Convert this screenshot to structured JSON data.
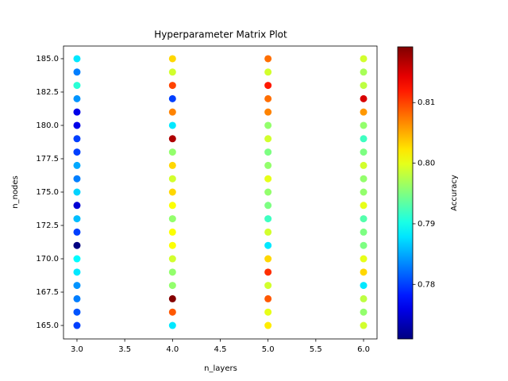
{
  "chart_data": {
    "type": "scatter",
    "title": "Hyperparameter Matrix Plot",
    "x_label": "n_layers",
    "y_label": "n_nodes",
    "xlim": [
      2.859,
      6.141
    ],
    "xticks": [
      {
        "value": 3,
        "label": "3.0"
      },
      {
        "value": 3.5,
        "label": "3.5"
      },
      {
        "value": 4,
        "label": "4.0"
      },
      {
        "value": 4.5,
        "label": "4.5"
      },
      {
        "value": 5,
        "label": "5.0"
      },
      {
        "value": 5.5,
        "label": "5.5"
      },
      {
        "value": 6,
        "label": "6.0"
      }
    ],
    "ylim": [
      163.99,
      185.95
    ],
    "yticks": [
      {
        "value": 165,
        "label": "165.0"
      },
      {
        "value": 167.5,
        "label": "167.5"
      },
      {
        "value": 170,
        "label": "170.0"
      },
      {
        "value": 172.5,
        "label": "172.5"
      },
      {
        "value": 175,
        "label": "175.0"
      },
      {
        "value": 177.5,
        "label": "177.5"
      },
      {
        "value": 180,
        "label": "180.0"
      },
      {
        "value": 182.5,
        "label": "182.5"
      },
      {
        "value": 185,
        "label": "185.0"
      }
    ],
    "colorbar": {
      "label": "Accuracy",
      "cmap": "jet",
      "lim": [
        0.771,
        0.8192
      ],
      "ticks": [
        {
          "value": 0.78,
          "label": "0.78"
        },
        {
          "value": 0.79,
          "label": "0.79"
        },
        {
          "value": 0.8,
          "label": "0.80"
        },
        {
          "value": 0.81,
          "label": "0.81"
        }
      ]
    },
    "x": [
      3,
      3,
      3,
      3,
      3,
      3,
      3,
      3,
      3,
      3,
      3,
      3,
      3,
      3,
      3,
      3,
      3,
      3,
      3,
      3,
      3,
      4,
      4,
      4,
      4,
      4,
      4,
      4,
      4,
      4,
      4,
      4,
      4,
      4,
      4,
      4,
      4,
      4,
      4,
      4,
      4,
      4,
      5,
      5,
      5,
      5,
      5,
      5,
      5,
      5,
      5,
      5,
      5,
      5,
      5,
      5,
      5,
      5,
      5,
      5,
      5,
      5,
      5,
      6,
      6,
      6,
      6,
      6,
      6,
      6,
      6,
      6,
      6,
      6,
      6,
      6,
      6,
      6,
      6,
      6,
      6,
      6,
      6,
      6
    ],
    "y": [
      185,
      184,
      183,
      182,
      181,
      180,
      179,
      178,
      177,
      176,
      175,
      174,
      173,
      172,
      171,
      170,
      169,
      168,
      167,
      166,
      165,
      185,
      184,
      183,
      182,
      181,
      180,
      179,
      178,
      177,
      176,
      175,
      174,
      173,
      172,
      171,
      170,
      169,
      168,
      167,
      166,
      165,
      185,
      184,
      183,
      182,
      181,
      180,
      179,
      178,
      177,
      176,
      175,
      174,
      173,
      172,
      171,
      170,
      169,
      168,
      167,
      166,
      165,
      185,
      184,
      183,
      182,
      181,
      180,
      179,
      178,
      177,
      176,
      175,
      174,
      173,
      172,
      171,
      170,
      169,
      168,
      167,
      166,
      165
    ],
    "accuracy": [
      0.788,
      0.783,
      0.791,
      0.784,
      0.776,
      0.776,
      0.78,
      0.78,
      0.785,
      0.783,
      0.787,
      0.775,
      0.786,
      0.78,
      0.771,
      0.789,
      0.788,
      0.784,
      0.783,
      0.781,
      0.78,
      0.803,
      0.799,
      0.81,
      0.78,
      0.807,
      0.788,
      0.817,
      0.796,
      0.803,
      0.799,
      0.803,
      0.801,
      0.796,
      0.801,
      0.801,
      0.799,
      0.796,
      0.796,
      0.819,
      0.809,
      0.788,
      0.808,
      0.799,
      0.812,
      0.808,
      0.807,
      0.796,
      0.799,
      0.795,
      0.796,
      0.8,
      0.796,
      0.795,
      0.792,
      0.799,
      0.788,
      0.803,
      0.811,
      0.799,
      0.809,
      0.8,
      0.802,
      0.799,
      0.797,
      0.798,
      0.815,
      0.806,
      0.796,
      0.792,
      0.795,
      0.799,
      0.796,
      0.796,
      0.8,
      0.793,
      0.795,
      0.795,
      0.8,
      0.803,
      0.788,
      0.798,
      0.796,
      0.799
    ]
  }
}
